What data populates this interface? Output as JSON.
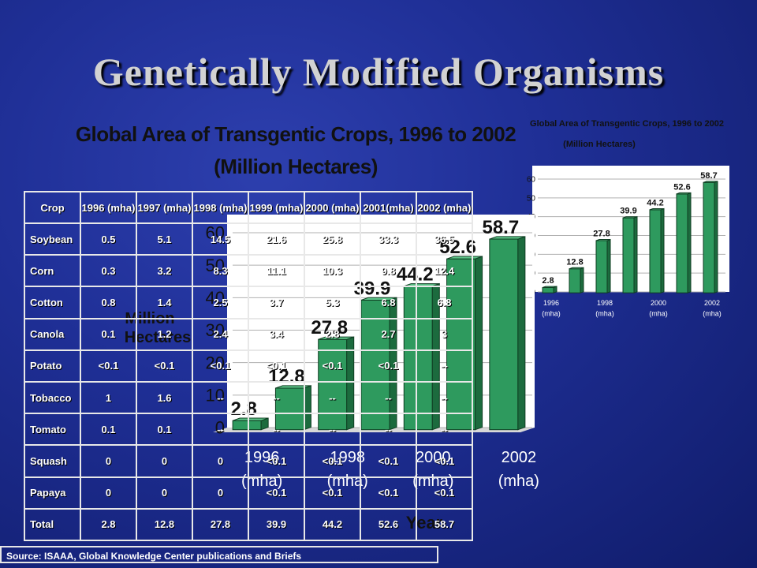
{
  "slide": {
    "title": "Genetically Modified Organisms",
    "source": "Source: ISAAA, Global Knowledge Center publications and Briefs"
  },
  "table": {
    "headers": [
      "Crop",
      "1996 (mha)",
      "1997 (mha)",
      "1998 (mha)",
      "1999 (mha)",
      "2000 (mha)",
      "2001(mha)",
      "2002 (mha)"
    ],
    "rows": [
      [
        "Soybean",
        "0.5",
        "5.1",
        "14.5",
        "21.6",
        "25.8",
        "33.3",
        "36.5"
      ],
      [
        "Corn",
        "0.3",
        "3.2",
        "8.3",
        "11.1",
        "10.3",
        "9.8",
        "12.4"
      ],
      [
        "Cotton",
        "0.8",
        "1.4",
        "2.5",
        "3.7",
        "5.3",
        "6.8",
        "6.8"
      ],
      [
        "Canola",
        "0.1",
        "1.2",
        "2.4",
        "3.4",
        "2.8",
        "2.7",
        "3"
      ],
      [
        "Potato",
        "<0.1",
        "<0.1",
        "<0.1",
        "<0.1",
        "<0.1",
        "<0.1",
        "--"
      ],
      [
        "Tobacco",
        "1",
        "1.6",
        "--",
        "--",
        "--",
        "--",
        "--"
      ],
      [
        "Tomato",
        "0.1",
        "0.1",
        "--",
        "--",
        "--",
        "--",
        "--"
      ],
      [
        "Squash",
        "0",
        "0",
        "0",
        "<0.1",
        "<0.1",
        "<0.1",
        "<0.1"
      ],
      [
        "Papaya",
        "0",
        "0",
        "0",
        "<0.1",
        "<0.1",
        "<0.1",
        "<0.1"
      ],
      [
        "Total",
        "2.8",
        "12.8",
        "27.8",
        "39.9",
        "44.2",
        "52.6",
        "58.7"
      ]
    ]
  },
  "chart_data": [
    {
      "type": "bar",
      "title": "Global Area of Transgentic Crops, 1996 to 2002",
      "subtitle": "(Million Hectares)",
      "xlabel": "Year",
      "ylabel": "Million Hectares",
      "ylim": [
        0,
        60
      ],
      "yticks": [
        "0",
        "10",
        "20",
        "30",
        "40",
        "50",
        "60"
      ],
      "x_tick_labels": [
        [
          "1996",
          "(mha)"
        ],
        [
          "1998",
          "(mha)"
        ],
        [
          "2000",
          "(mha)"
        ],
        [
          "2002",
          "(mha)"
        ]
      ],
      "categories": [
        "1996",
        "1997",
        "1998",
        "1999",
        "2000",
        "2001",
        "2002"
      ],
      "values": [
        2.8,
        12.8,
        27.8,
        39.9,
        44.2,
        52.6,
        58.7
      ],
      "data_labels": [
        "2.8",
        "12.8",
        "27.8",
        "39.9",
        "44.2",
        "52.6",
        "58.7"
      ],
      "bar_color": "#2e9a5e",
      "grid": true
    },
    {
      "type": "bar",
      "title": "Global Area of Transgentic Crops, 1996 to 2002",
      "subtitle": "(Million Hectares)",
      "ylim": [
        0,
        60
      ],
      "yticks": [
        "0",
        "10",
        "20",
        "30",
        "40",
        "50",
        "60"
      ],
      "x_tick_labels": [
        [
          "1996",
          "(mha)"
        ],
        [
          "1998",
          "(mha)"
        ],
        [
          "2000",
          "(mha)"
        ],
        [
          "2002",
          "(mha)"
        ]
      ],
      "categories": [
        "1996",
        "1997",
        "1998",
        "1999",
        "2000",
        "2001",
        "2002"
      ],
      "values": [
        2.8,
        12.8,
        27.8,
        39.9,
        44.2,
        52.6,
        58.7
      ],
      "data_labels": [
        "2.8",
        "12.8",
        "27.8",
        "39.9",
        "44.2",
        "52.6",
        "58.7"
      ],
      "bar_color": "#2e9a5e",
      "grid": true
    }
  ]
}
